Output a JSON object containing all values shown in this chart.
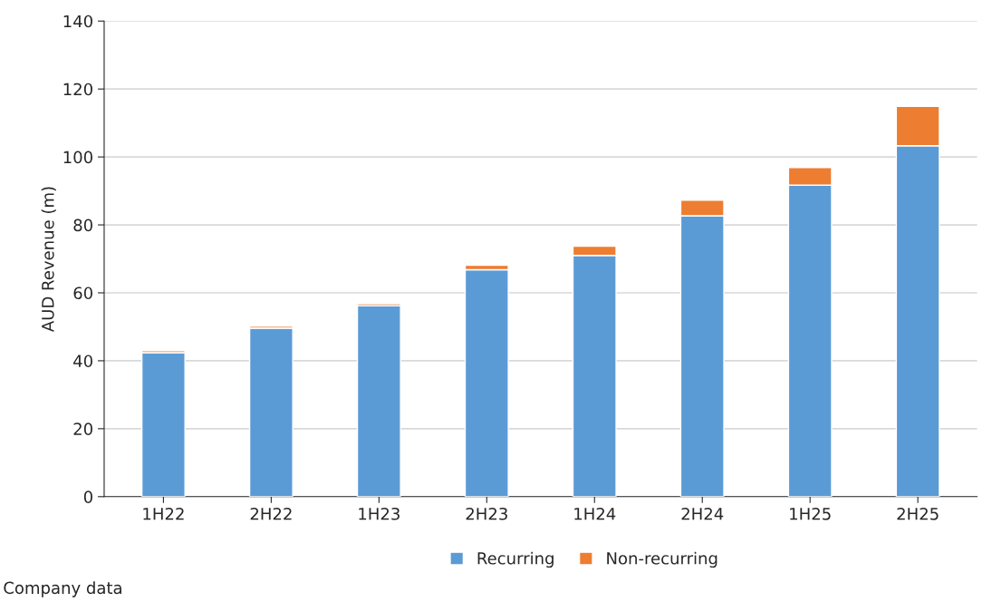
{
  "chart_data": {
    "type": "bar",
    "stacked": true,
    "ylabel": "AUD Revenue (m)",
    "categories": [
      "1H22",
      "2H22",
      "1H23",
      "2H23",
      "1H24",
      "2H24",
      "1H25",
      "2H25"
    ],
    "series": [
      {
        "name": "Recurring",
        "color": "#5b9bd5",
        "values": [
          42.4,
          49.6,
          56.2,
          66.8,
          71.0,
          82.7,
          91.7,
          103.3
        ]
      },
      {
        "name": "Non-recurring",
        "color": "#ed7d31",
        "values": [
          0.6,
          0.6,
          0.6,
          1.3,
          2.7,
          4.6,
          5.2,
          11.6
        ]
      }
    ],
    "ylim": [
      0,
      140
    ],
    "yticks": [
      0,
      20,
      40,
      60,
      80,
      100,
      120,
      140
    ],
    "grid": "y",
    "legend": "bottom",
    "annotations": [
      "Company data"
    ]
  }
}
